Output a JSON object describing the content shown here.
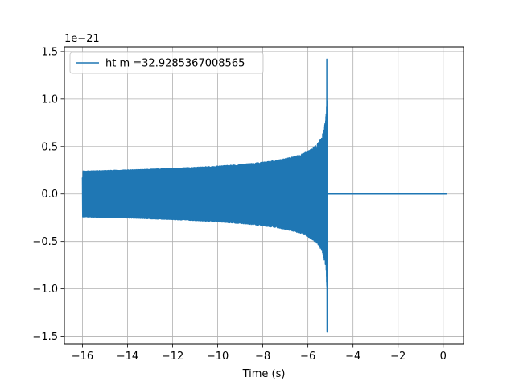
{
  "chart_data": {
    "type": "line",
    "title": "",
    "xlabel": "Time (s)",
    "ylabel": "",
    "offset_text": "1e−21",
    "xlim": [
      -16.8,
      0.9
    ],
    "ylim": [
      -1.58,
      1.55
    ],
    "xticks": [
      -16,
      -14,
      -12,
      -10,
      -8,
      -6,
      -4,
      -2,
      0
    ],
    "xtick_labels": [
      "−16",
      "−14",
      "−12",
      "−10",
      "−8",
      "−6",
      "−4",
      "−2",
      "0"
    ],
    "yticks": [
      -1.5,
      -1.0,
      -0.5,
      0.0,
      0.5,
      1.0,
      1.5
    ],
    "ytick_labels": [
      "−1.5",
      "−1.0",
      "−0.5",
      "0.0",
      "0.5",
      "1.0",
      "1.5"
    ],
    "grid": true,
    "legend_position": "upper-left",
    "series": [
      {
        "name": "ht m =32.9285367008565",
        "color": "#1f77b4",
        "signal": {
          "kind": "chirp",
          "t_start": -16.0,
          "t_merger": -5.15,
          "t_end": 0.15,
          "amp_start": 0.24,
          "amp_peak": 1.42,
          "amp_min_peak": -1.45,
          "post_merger_value": 0.0
        }
      }
    ]
  }
}
